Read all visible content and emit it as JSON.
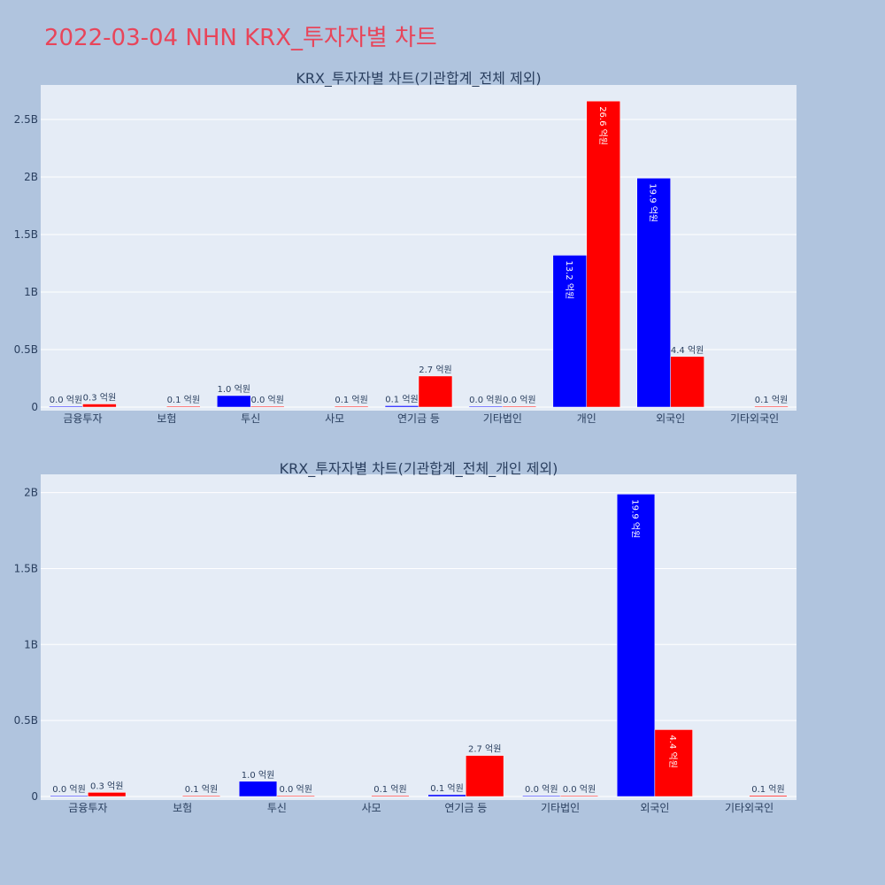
{
  "page": {
    "title": "2022-03-04 NHN KRX_투자자별 차트",
    "background": "#b0c4de",
    "title_color": "#e8455a",
    "plot_background": "#e5ecf6"
  },
  "chart_data": [
    {
      "type": "bar",
      "title": "KRX_투자자별 차트(기관합계_전체 제외)",
      "categories": [
        "금융투자",
        "보험",
        "투신",
        "사모",
        "연기금 등",
        "기타법인",
        "개인",
        "외국인",
        "기타외국인"
      ],
      "yticks": [
        0,
        0.5,
        1,
        1.5,
        2,
        2.5
      ],
      "ytick_labels": [
        "0",
        "0.5B",
        "1B",
        "1.5B",
        "2B",
        "2.5B"
      ],
      "ylim": [
        0,
        2.8
      ],
      "grid": true,
      "series": [
        {
          "color": "#0000ff",
          "values": [
            0.002,
            null,
            0.1,
            null,
            0.012,
            0.002,
            1.32,
            1.99,
            null
          ],
          "labels": [
            "0.0 억원",
            "",
            "1.0 억원",
            "",
            "0.1 억원",
            "0.0 억원",
            "13.2 억원",
            "19.9 억원",
            ""
          ]
        },
        {
          "color": "#ff0000",
          "values": [
            0.027,
            0.005,
            0.001,
            0.006,
            0.27,
            0.001,
            2.66,
            0.44,
            0.007
          ],
          "labels": [
            "0.3 억원",
            "0.1 억원",
            "0.0 억원",
            "0.1 억원",
            "2.7 억원",
            "0.0 억원",
            "26.6 억원",
            "4.4 억원",
            "0.1 억원"
          ]
        }
      ]
    },
    {
      "type": "bar",
      "title": "KRX_투자자별 차트(기관합계_전체_개인 제외)",
      "categories": [
        "금융투자",
        "보험",
        "투신",
        "사모",
        "연기금 등",
        "기타법인",
        "외국인",
        "기타외국인"
      ],
      "yticks": [
        0,
        0.5,
        1,
        1.5,
        2
      ],
      "ytick_labels": [
        "0",
        "0.5B",
        "1B",
        "1.5B",
        "2B"
      ],
      "ylim": [
        0,
        2.12
      ],
      "grid": true,
      "series": [
        {
          "color": "#0000ff",
          "values": [
            0.002,
            null,
            0.1,
            null,
            0.012,
            0.002,
            1.99,
            null
          ],
          "labels": [
            "0.0 억원",
            "",
            "1.0 억원",
            "",
            "0.1 억원",
            "0.0 억원",
            "19.9 억원",
            ""
          ]
        },
        {
          "color": "#ff0000",
          "values": [
            0.027,
            0.005,
            0.001,
            0.006,
            0.27,
            0.001,
            0.44,
            0.007
          ],
          "labels": [
            "0.3 억원",
            "0.1 억원",
            "0.0 억원",
            "0.1 억원",
            "2.7 억원",
            "0.0 억원",
            "4.4 억원",
            "0.1 억원"
          ]
        }
      ]
    }
  ]
}
